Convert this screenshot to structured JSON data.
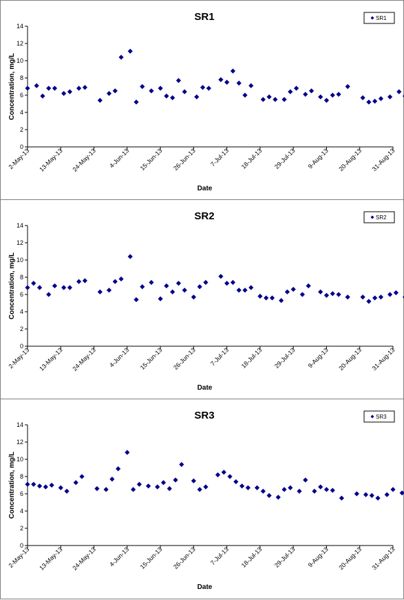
{
  "chart_data": [
    {
      "type": "scatter",
      "title": "SR1",
      "xlabel": "Date",
      "ylabel": "Concentration, mg/L",
      "legend": "SR1",
      "legend_position": "top-right",
      "grid": false,
      "ylim": [
        0,
        14
      ],
      "yticks": [
        0,
        2,
        4,
        6,
        8,
        10,
        12,
        14
      ],
      "xlim": [
        "2013-05-02",
        "2013-08-31"
      ],
      "xticks": [
        "2-May-13",
        "13-May-13",
        "24-May-13",
        "4-Jun-13",
        "15-Jun-13",
        "26-Jun-13",
        "7-Jul-13",
        "18-Jul-13",
        "29-Jul-13",
        "9-Aug-13",
        "20-Aug-13",
        "31-Aug-13"
      ],
      "marker_color": "#00008B",
      "points": [
        [
          "2013-05-02",
          6.8
        ],
        [
          "2013-05-05",
          7.1
        ],
        [
          "2013-05-07",
          5.9
        ],
        [
          "2013-05-09",
          6.8
        ],
        [
          "2013-05-11",
          6.8
        ],
        [
          "2013-05-14",
          6.2
        ],
        [
          "2013-05-16",
          6.4
        ],
        [
          "2013-05-19",
          6.8
        ],
        [
          "2013-05-21",
          6.9
        ],
        [
          "2013-05-26",
          5.4
        ],
        [
          "2013-05-29",
          6.2
        ],
        [
          "2013-05-31",
          6.5
        ],
        [
          "2013-06-02",
          10.4
        ],
        [
          "2013-06-05",
          11.1
        ],
        [
          "2013-06-07",
          5.2
        ],
        [
          "2013-06-09",
          7.0
        ],
        [
          "2013-06-12",
          6.5
        ],
        [
          "2013-06-15",
          6.8
        ],
        [
          "2013-06-17",
          5.9
        ],
        [
          "2013-06-19",
          5.7
        ],
        [
          "2013-06-21",
          7.7
        ],
        [
          "2013-06-23",
          6.4
        ],
        [
          "2013-06-27",
          5.8
        ],
        [
          "2013-06-29",
          6.9
        ],
        [
          "2013-07-01",
          6.8
        ],
        [
          "2013-07-05",
          7.8
        ],
        [
          "2013-07-07",
          7.5
        ],
        [
          "2013-07-09",
          8.8
        ],
        [
          "2013-07-11",
          7.4
        ],
        [
          "2013-07-13",
          6.0
        ],
        [
          "2013-07-15",
          7.1
        ],
        [
          "2013-07-19",
          5.5
        ],
        [
          "2013-07-21",
          5.8
        ],
        [
          "2013-07-23",
          5.5
        ],
        [
          "2013-07-26",
          5.5
        ],
        [
          "2013-07-28",
          6.4
        ],
        [
          "2013-07-30",
          6.8
        ],
        [
          "2013-08-02",
          6.1
        ],
        [
          "2013-08-04",
          6.5
        ],
        [
          "2013-08-07",
          5.8
        ],
        [
          "2013-08-09",
          5.4
        ],
        [
          "2013-08-11",
          6.0
        ],
        [
          "2013-08-13",
          6.1
        ],
        [
          "2013-08-16",
          7.0
        ],
        [
          "2013-08-21",
          5.7
        ],
        [
          "2013-08-23",
          5.2
        ],
        [
          "2013-08-25",
          5.3
        ],
        [
          "2013-08-27",
          5.6
        ],
        [
          "2013-08-30",
          5.8
        ],
        [
          "2013-09-02",
          6.4
        ],
        [
          "2013-09-04",
          5.9
        ]
      ]
    },
    {
      "type": "scatter",
      "title": "SR2",
      "xlabel": "Date",
      "ylabel": "Concentration, mg/L",
      "legend": "SR2",
      "legend_position": "top-right",
      "grid": false,
      "ylim": [
        0,
        14
      ],
      "yticks": [
        0,
        2,
        4,
        6,
        8,
        10,
        12,
        14
      ],
      "xlim": [
        "2013-05-02",
        "2013-08-31"
      ],
      "xticks": [
        "2-May-13",
        "13-May-13",
        "24-May-13",
        "4-Jun-13",
        "15-Jun-13",
        "26-Jun-13",
        "7-Jul-13",
        "18-Jul-13",
        "29-Jul-13",
        "9-Aug-13",
        "20-Aug-13",
        "31-Aug-13"
      ],
      "marker_color": "#00008B",
      "points": [
        [
          "2013-05-02",
          6.8
        ],
        [
          "2013-05-04",
          7.3
        ],
        [
          "2013-05-06",
          6.8
        ],
        [
          "2013-05-09",
          6.0
        ],
        [
          "2013-05-11",
          7.0
        ],
        [
          "2013-05-14",
          6.8
        ],
        [
          "2013-05-16",
          6.8
        ],
        [
          "2013-05-19",
          7.5
        ],
        [
          "2013-05-21",
          7.6
        ],
        [
          "2013-05-26",
          6.3
        ],
        [
          "2013-05-29",
          6.5
        ],
        [
          "2013-05-31",
          7.5
        ],
        [
          "2013-06-02",
          7.8
        ],
        [
          "2013-06-05",
          10.4
        ],
        [
          "2013-06-07",
          5.4
        ],
        [
          "2013-06-09",
          6.9
        ],
        [
          "2013-06-12",
          7.4
        ],
        [
          "2013-06-15",
          5.5
        ],
        [
          "2013-06-17",
          7.0
        ],
        [
          "2013-06-19",
          6.3
        ],
        [
          "2013-06-21",
          7.3
        ],
        [
          "2013-06-23",
          6.5
        ],
        [
          "2013-06-26",
          5.7
        ],
        [
          "2013-06-28",
          6.9
        ],
        [
          "2013-06-30",
          7.4
        ],
        [
          "2013-07-05",
          8.1
        ],
        [
          "2013-07-07",
          7.3
        ],
        [
          "2013-07-09",
          7.4
        ],
        [
          "2013-07-11",
          6.5
        ],
        [
          "2013-07-13",
          6.5
        ],
        [
          "2013-07-15",
          6.8
        ],
        [
          "2013-07-18",
          5.8
        ],
        [
          "2013-07-20",
          5.6
        ],
        [
          "2013-07-22",
          5.6
        ],
        [
          "2013-07-25",
          5.3
        ],
        [
          "2013-07-27",
          6.3
        ],
        [
          "2013-07-29",
          6.6
        ],
        [
          "2013-08-01",
          6.0
        ],
        [
          "2013-08-03",
          7.0
        ],
        [
          "2013-08-07",
          6.3
        ],
        [
          "2013-08-09",
          5.9
        ],
        [
          "2013-08-11",
          6.1
        ],
        [
          "2013-08-13",
          6.0
        ],
        [
          "2013-08-16",
          5.7
        ],
        [
          "2013-08-21",
          5.7
        ],
        [
          "2013-08-23",
          5.2
        ],
        [
          "2013-08-25",
          5.6
        ],
        [
          "2013-08-27",
          5.7
        ],
        [
          "2013-08-30",
          6.0
        ],
        [
          "2013-09-01",
          6.2
        ],
        [
          "2013-09-04",
          5.7
        ]
      ]
    },
    {
      "type": "scatter",
      "title": "SR3",
      "xlabel": "Date",
      "ylabel": "Concentration, mg/L",
      "legend": "SR3",
      "legend_position": "top-right",
      "grid": false,
      "ylim": [
        0,
        14
      ],
      "yticks": [
        0,
        2,
        4,
        6,
        8,
        10,
        12,
        14
      ],
      "xlim": [
        "2013-05-02",
        "2013-08-31"
      ],
      "xticks": [
        "2-May-13",
        "13-May-13",
        "24-May-13",
        "4-Jun-13",
        "15-Jun-13",
        "26-Jun-13",
        "7-Jul-13",
        "18-Jul-13",
        "29-Jul-13",
        "9-Aug-13",
        "20-Aug-13",
        "31-Aug-13"
      ],
      "marker_color": "#00008B",
      "points": [
        [
          "2013-05-02",
          7.1
        ],
        [
          "2013-05-04",
          7.1
        ],
        [
          "2013-05-06",
          6.9
        ],
        [
          "2013-05-08",
          6.8
        ],
        [
          "2013-05-10",
          7.0
        ],
        [
          "2013-05-13",
          6.7
        ],
        [
          "2013-05-15",
          6.3
        ],
        [
          "2013-05-18",
          7.3
        ],
        [
          "2013-05-20",
          8.0
        ],
        [
          "2013-05-25",
          6.6
        ],
        [
          "2013-05-28",
          6.5
        ],
        [
          "2013-05-30",
          7.7
        ],
        [
          "2013-06-01",
          8.9
        ],
        [
          "2013-06-04",
          10.8
        ],
        [
          "2013-06-06",
          6.5
        ],
        [
          "2013-06-08",
          7.1
        ],
        [
          "2013-06-11",
          6.9
        ],
        [
          "2013-06-14",
          6.8
        ],
        [
          "2013-06-16",
          7.3
        ],
        [
          "2013-06-18",
          6.6
        ],
        [
          "2013-06-20",
          7.6
        ],
        [
          "2013-06-22",
          9.4
        ],
        [
          "2013-06-26",
          7.5
        ],
        [
          "2013-06-28",
          6.5
        ],
        [
          "2013-06-30",
          6.8
        ],
        [
          "2013-07-04",
          8.2
        ],
        [
          "2013-07-06",
          8.5
        ],
        [
          "2013-07-08",
          8.0
        ],
        [
          "2013-07-10",
          7.4
        ],
        [
          "2013-07-12",
          6.9
        ],
        [
          "2013-07-14",
          6.7
        ],
        [
          "2013-07-17",
          6.7
        ],
        [
          "2013-07-19",
          6.3
        ],
        [
          "2013-07-21",
          5.8
        ],
        [
          "2013-07-24",
          5.6
        ],
        [
          "2013-07-26",
          6.5
        ],
        [
          "2013-07-28",
          6.7
        ],
        [
          "2013-07-31",
          6.3
        ],
        [
          "2013-08-02",
          7.6
        ],
        [
          "2013-08-05",
          6.3
        ],
        [
          "2013-08-07",
          6.8
        ],
        [
          "2013-08-09",
          6.5
        ],
        [
          "2013-08-11",
          6.4
        ],
        [
          "2013-08-14",
          5.5
        ],
        [
          "2013-08-19",
          6.0
        ],
        [
          "2013-08-22",
          5.9
        ],
        [
          "2013-08-24",
          5.8
        ],
        [
          "2013-08-26",
          5.5
        ],
        [
          "2013-08-29",
          5.9
        ],
        [
          "2013-08-31",
          6.5
        ],
        [
          "2013-09-03",
          6.1
        ]
      ]
    }
  ]
}
